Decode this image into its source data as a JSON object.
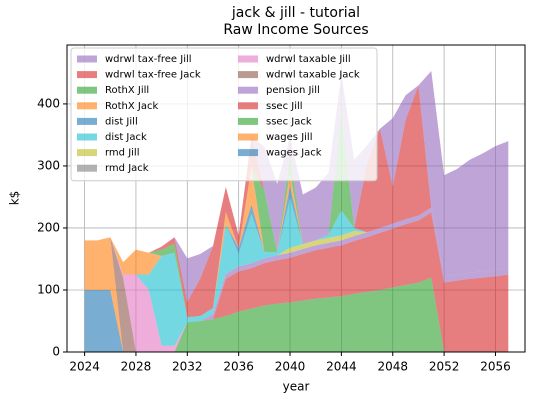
{
  "chart_data": {
    "type": "stacked_area",
    "title": [
      "jack & jill - tutorial",
      "Raw Income Sources"
    ],
    "x_label": "year",
    "y_label": "k$",
    "x": [
      2024,
      2025,
      2026,
      2027,
      2028,
      2029,
      2030,
      2031,
      2032,
      2033,
      2034,
      2035,
      2036,
      2037,
      2038,
      2039,
      2040,
      2041,
      2042,
      2043,
      2044,
      2045,
      2046,
      2047,
      2048,
      2049,
      2050,
      2051,
      2052,
      2053,
      2054,
      2055,
      2056,
      2057
    ],
    "xlim": [
      2022.63,
      2058.3
    ],
    "xticks": [
      2024,
      2028,
      2032,
      2036,
      2040,
      2044,
      2048,
      2052,
      2056
    ],
    "ylim": [
      0,
      495
    ],
    "yticks": [
      0,
      100,
      200,
      300,
      400
    ],
    "grid": true,
    "legend": "upper left",
    "legend_columns": 2,
    "opacity": 0.6,
    "series": [
      {
        "name": "wages Jack",
        "color": "#1f77b4",
        "values": [
          100,
          100,
          100,
          0,
          0,
          0,
          0,
          0,
          0,
          0,
          0,
          0,
          0,
          0,
          0,
          0,
          0,
          0,
          0,
          0,
          0,
          0,
          0,
          0,
          0,
          0,
          0,
          0,
          0,
          0,
          0,
          0,
          0,
          0
        ]
      },
      {
        "name": "wages Jill",
        "color": "#ff7f0e",
        "values": [
          80,
          80,
          85,
          0,
          0,
          0,
          0,
          0,
          0,
          0,
          0,
          0,
          0,
          0,
          0,
          0,
          0,
          0,
          0,
          0,
          0,
          0,
          0,
          0,
          0,
          0,
          0,
          0,
          0,
          0,
          0,
          0,
          0,
          0
        ]
      },
      {
        "name": "ssec Jack",
        "color": "#2ca02c",
        "values": [
          0,
          0,
          0,
          0,
          0,
          0,
          0,
          0,
          48,
          50,
          53,
          58,
          65,
          70,
          75,
          78,
          80,
          83,
          86,
          88,
          90,
          94,
          97,
          100,
          104,
          108,
          112,
          120,
          0,
          0,
          0,
          0,
          0,
          0
        ]
      },
      {
        "name": "ssec Jill",
        "color": "#d62728",
        "values": [
          0,
          0,
          0,
          0,
          0,
          0,
          0,
          0,
          0,
          0,
          0,
          60,
          65,
          65,
          68,
          70,
          72,
          75,
          78,
          80,
          82,
          85,
          88,
          92,
          95,
          98,
          100,
          105,
          112,
          115,
          118,
          120,
          122,
          125
        ]
      },
      {
        "name": "pension Jill",
        "color": "#9467bd",
        "values": [
          0,
          0,
          0,
          0,
          0,
          0,
          0,
          0,
          0,
          0,
          8,
          8,
          8,
          8,
          8,
          8,
          8,
          8,
          8,
          8,
          8,
          8,
          8,
          8,
          8,
          8,
          8,
          8,
          10,
          10,
          10,
          10,
          10,
          10
        ]
      },
      {
        "name": "wdrwl taxable Jack",
        "color": "#8c564b",
        "values": [
          0,
          0,
          0,
          120,
          0,
          0,
          0,
          0,
          0,
          0,
          0,
          0,
          0,
          0,
          0,
          0,
          0,
          0,
          0,
          0,
          0,
          0,
          0,
          0,
          0,
          0,
          0,
          0,
          0,
          0,
          0,
          0,
          0,
          0
        ]
      },
      {
        "name": "wdrwl taxable Jill",
        "color": "#e377c2",
        "values": [
          0,
          0,
          0,
          5,
          125,
          100,
          10,
          10,
          0,
          0,
          0,
          0,
          0,
          0,
          0,
          0,
          0,
          0,
          0,
          0,
          0,
          0,
          0,
          0,
          0,
          0,
          0,
          0,
          0,
          0,
          0,
          0,
          0,
          0
        ]
      },
      {
        "name": "rmd Jack",
        "color": "#7f7f7f",
        "values": [
          0,
          0,
          0,
          0,
          0,
          0,
          0,
          0,
          0,
          0,
          0,
          0,
          0,
          0,
          0,
          0,
          0,
          0,
          0,
          0,
          0,
          0,
          0,
          0,
          0,
          0,
          0,
          0,
          0,
          0,
          0,
          0,
          0,
          0
        ]
      },
      {
        "name": "rmd Jill",
        "color": "#bcbd22",
        "values": [
          0,
          0,
          0,
          0,
          0,
          0,
          0,
          0,
          0,
          0,
          0,
          0,
          0,
          0,
          0,
          0,
          8,
          8,
          8,
          8,
          8,
          8,
          0,
          0,
          0,
          0,
          0,
          0,
          0,
          0,
          0,
          0,
          0,
          0
        ]
      },
      {
        "name": "dist Jack",
        "color": "#17becf",
        "values": [
          0,
          0,
          0,
          0,
          0,
          25,
          145,
          150,
          8,
          8,
          10,
          80,
          20,
          80,
          10,
          5,
          80,
          0,
          0,
          5,
          40,
          5,
          0,
          0,
          0,
          0,
          0,
          0,
          0,
          0,
          0,
          0,
          0,
          0
        ]
      },
      {
        "name": "dist Jill",
        "color": "#1f77b4",
        "values": [
          0,
          0,
          0,
          0,
          0,
          0,
          0,
          0,
          0,
          0,
          0,
          0,
          10,
          15,
          0,
          0,
          20,
          0,
          0,
          0,
          0,
          0,
          0,
          0,
          0,
          0,
          0,
          0,
          0,
          0,
          0,
          0,
          0,
          0
        ]
      },
      {
        "name": "RothX Jack",
        "color": "#ff7f0e",
        "values": [
          0,
          0,
          0,
          20,
          40,
          35,
          0,
          0,
          0,
          0,
          0,
          20,
          0,
          60,
          0,
          0,
          20,
          0,
          0,
          0,
          0,
          0,
          0,
          0,
          0,
          0,
          0,
          0,
          0,
          0,
          0,
          0,
          0,
          0
        ]
      },
      {
        "name": "RothX Jill",
        "color": "#2ca02c",
        "values": [
          0,
          0,
          0,
          0,
          0,
          0,
          10,
          15,
          0,
          0,
          0,
          0,
          0,
          0,
          100,
          0,
          30,
          0,
          0,
          0,
          160,
          0,
          0,
          0,
          0,
          0,
          0,
          0,
          0,
          0,
          0,
          0,
          0,
          0
        ]
      },
      {
        "name": "wdrwl tax-free Jack",
        "color": "#d62728",
        "values": [
          0,
          0,
          0,
          0,
          0,
          0,
          5,
          10,
          25,
          60,
          100,
          40,
          20,
          50,
          0,
          0,
          0,
          0,
          0,
          0,
          0,
          0,
          110,
          160,
          60,
          160,
          210,
          0,
          0,
          0,
          0,
          0,
          0,
          0
        ]
      },
      {
        "name": "wdrwl tax-free Jill",
        "color": "#9467bd",
        "values": [
          0,
          0,
          0,
          0,
          0,
          0,
          0,
          0,
          70,
          40,
          0,
          0,
          0,
          0,
          70,
          110,
          30,
          80,
          85,
          100,
          60,
          110,
          30,
          0,
          110,
          40,
          0,
          220,
          163,
          170,
          182,
          190,
          200,
          205
        ]
      }
    ]
  }
}
